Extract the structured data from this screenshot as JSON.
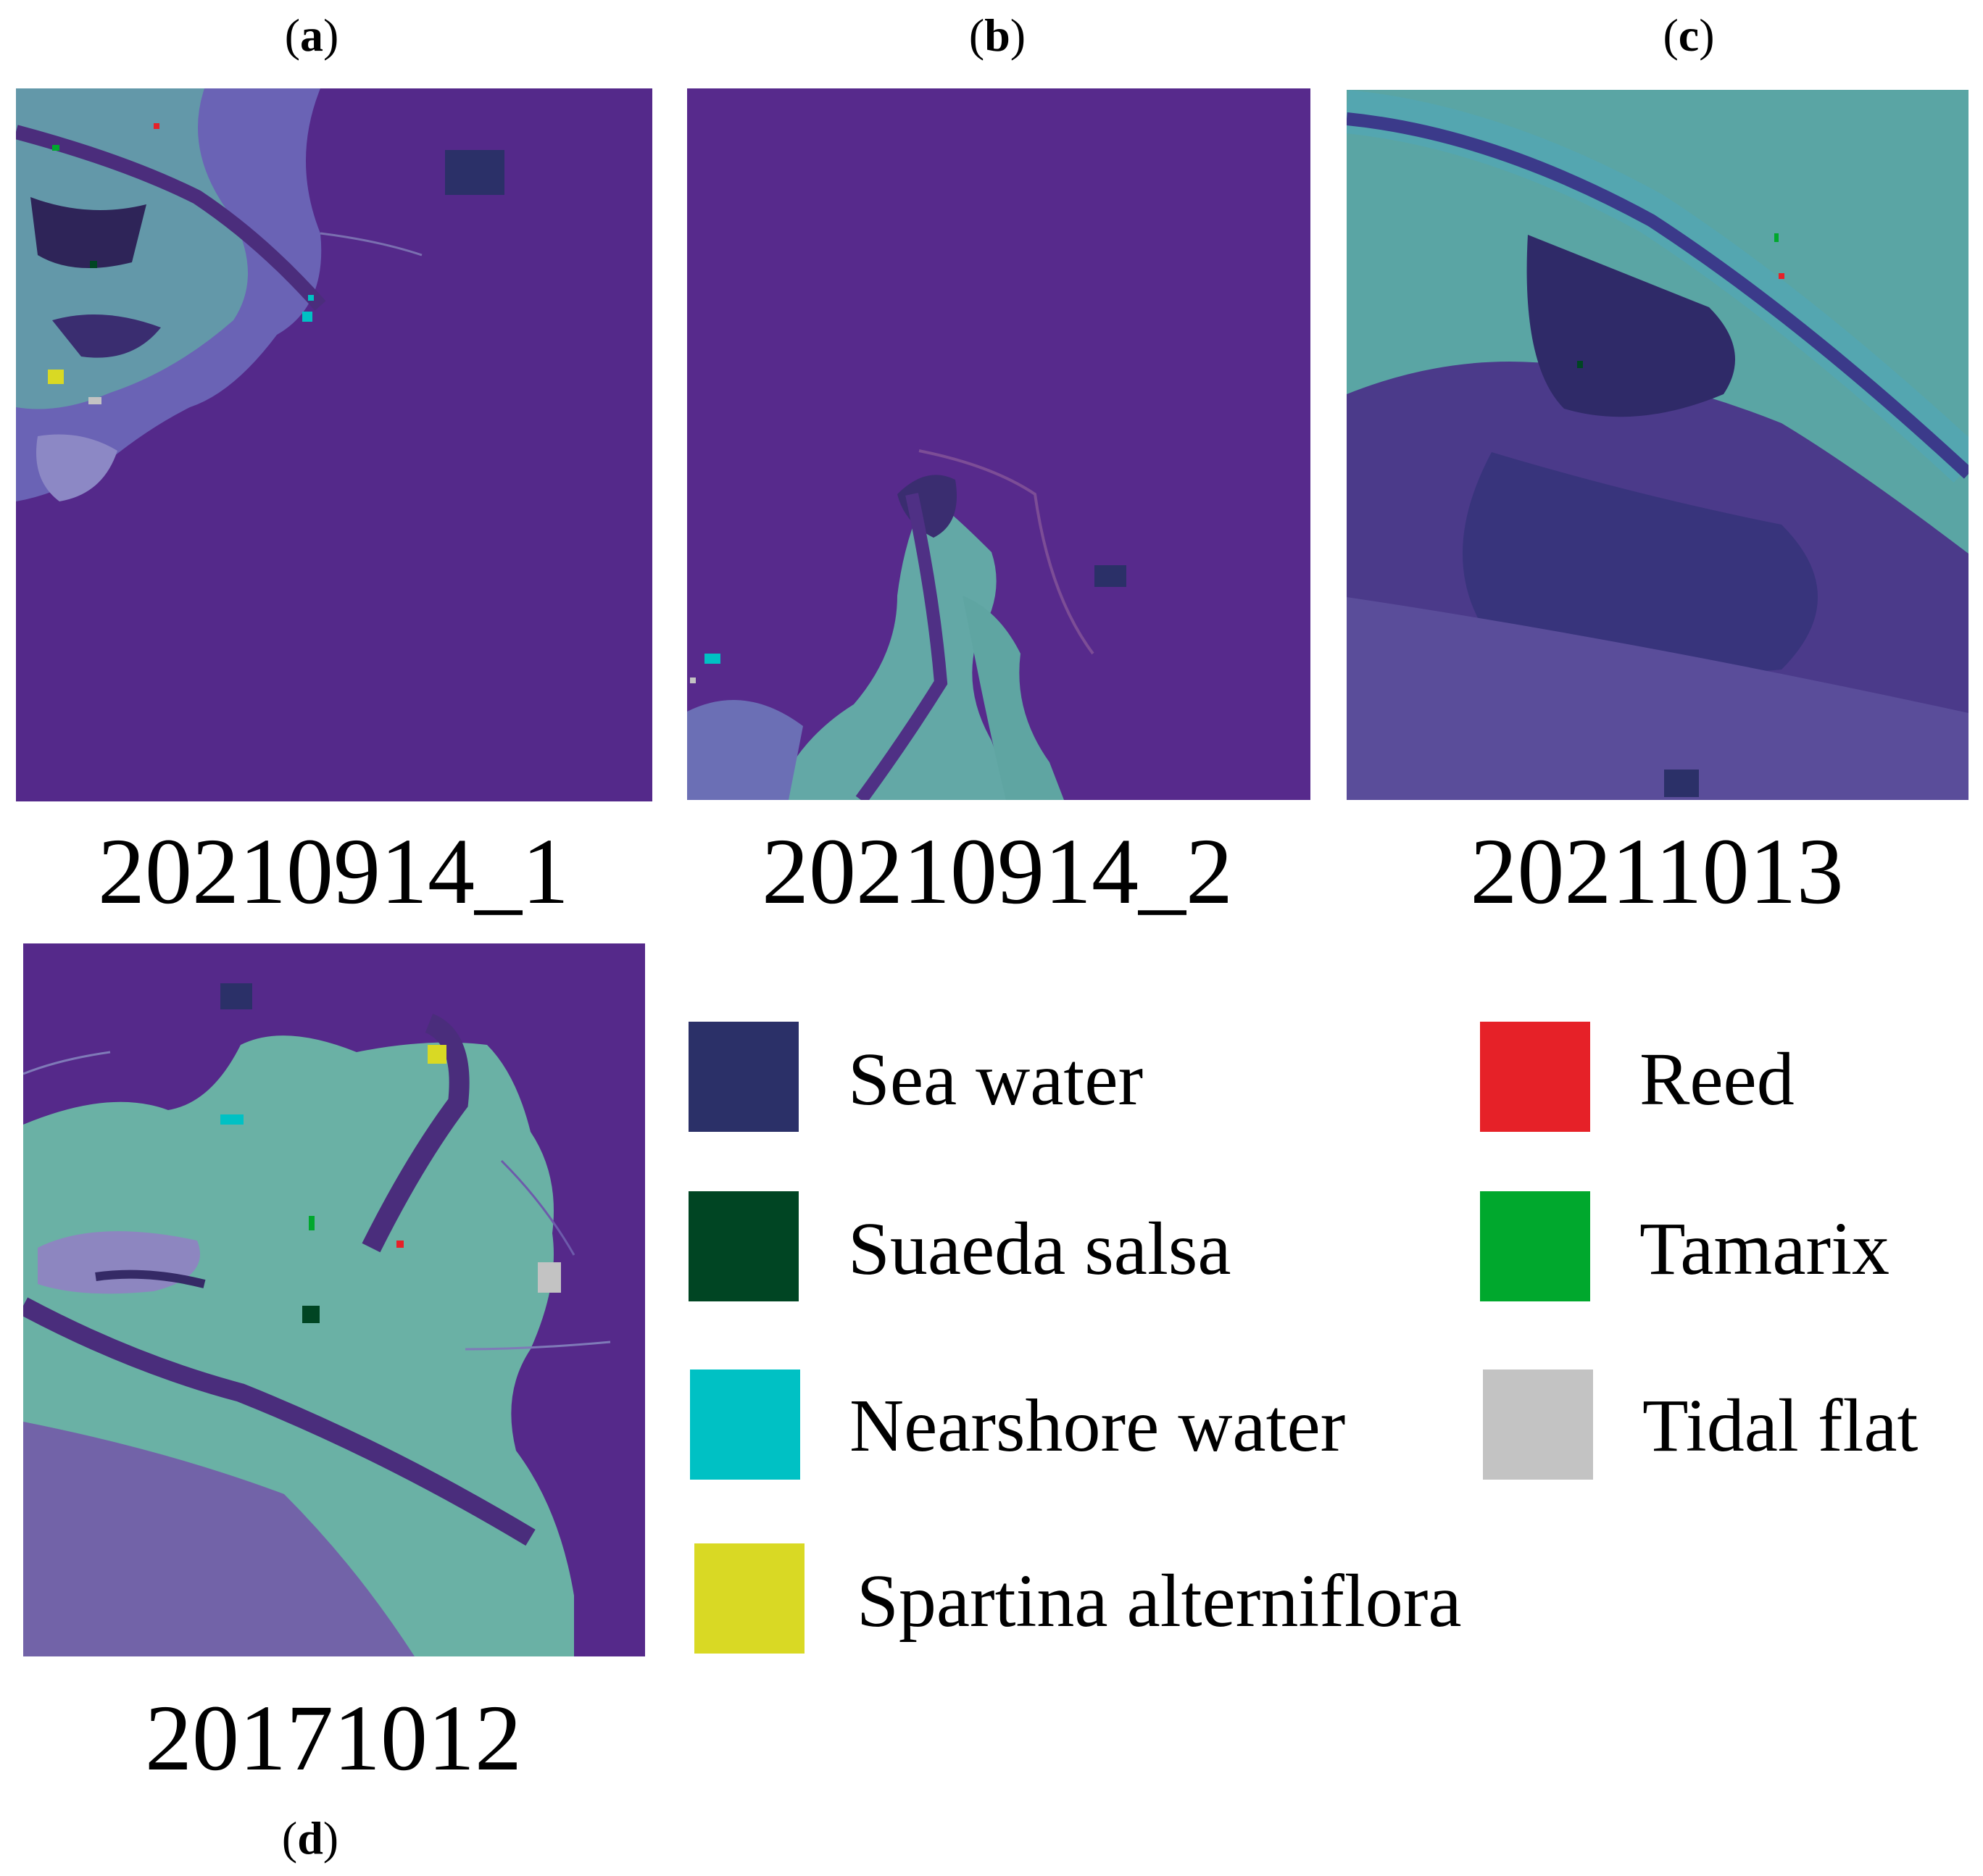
{
  "panels": {
    "a": {
      "letter": "a",
      "date": "20210914_1"
    },
    "b": {
      "letter": "b",
      "date": "20210914_2"
    },
    "c": {
      "letter": "c",
      "date": "20211013"
    },
    "d": {
      "letter": "d",
      "date": "20171012"
    }
  },
  "legend": [
    {
      "label": "Sea water",
      "color": "#2b3068"
    },
    {
      "label": "Reed",
      "color": "#e62128"
    },
    {
      "label": "Suaeda salsa",
      "color": "#004523"
    },
    {
      "label": "Tamarix",
      "color": "#00a82d"
    },
    {
      "label": "Nearshore water",
      "color": "#00c1c4"
    },
    {
      "label": "Tidal flat",
      "color": "#c3c3c3"
    },
    {
      "label": "Spartina alterniflora",
      "color": "#d9d924"
    }
  ]
}
